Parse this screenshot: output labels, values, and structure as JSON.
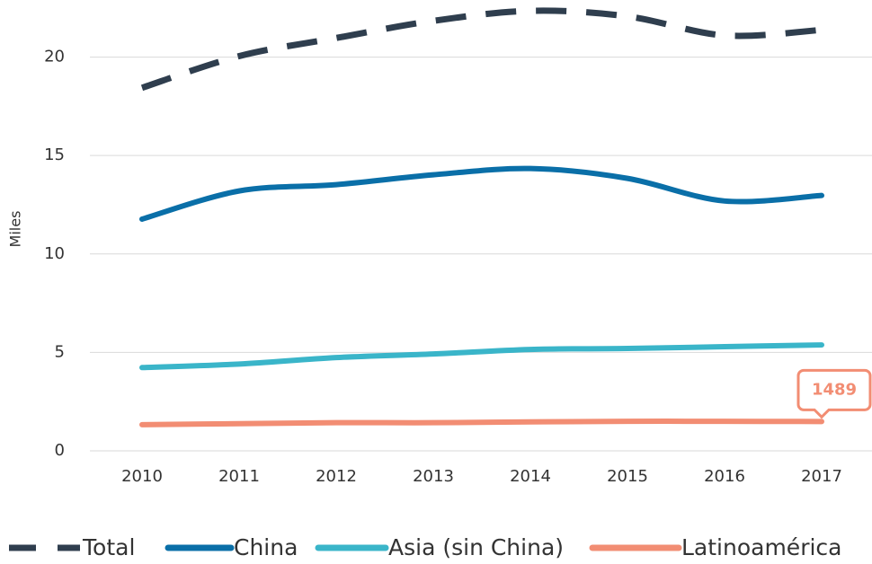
{
  "chart_data": {
    "type": "line",
    "y_label": "Miles",
    "categories": [
      "2010",
      "2011",
      "2012",
      "2013",
      "2014",
      "2015",
      "2016",
      "2017"
    ],
    "series": [
      {
        "name": "Total",
        "color": "#2f3e4e",
        "dashed": true,
        "values": [
          18.44,
          20.05,
          20.97,
          21.84,
          22.35,
          22.07,
          21.1,
          21.38
        ]
      },
      {
        "name": "China",
        "color": "#0a6fa8",
        "values": [
          11.77,
          13.2,
          13.52,
          14.02,
          14.34,
          13.84,
          12.69,
          12.97
        ]
      },
      {
        "name": "Asia (sin China)",
        "color": "#3ab5c9",
        "values": [
          4.23,
          4.41,
          4.74,
          4.92,
          5.15,
          5.2,
          5.29,
          5.38
        ]
      },
      {
        "name": "Latinoamérica",
        "color": "#f28d73",
        "values": [
          1.33,
          1.38,
          1.43,
          1.43,
          1.47,
          1.5,
          1.5,
          1.489
        ],
        "value_labels": [
          null,
          null,
          null,
          null,
          null,
          null,
          null,
          "1489"
        ]
      }
    ],
    "ylim": [
      0,
      22.9
    ],
    "yticks": [
      0,
      5,
      10,
      15,
      20
    ],
    "grid": true,
    "legend": "bottom"
  }
}
